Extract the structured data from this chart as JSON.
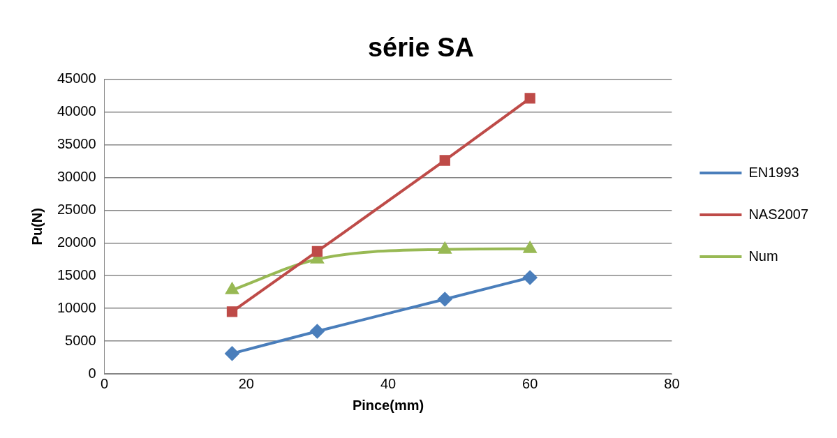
{
  "chart_data": {
    "type": "line",
    "title": "série SA",
    "xlabel": "Pince(mm)",
    "ylabel": "Pu(N)",
    "x": [
      18,
      30,
      48,
      60
    ],
    "series": [
      {
        "name": "EN1993",
        "color": "#4a7ebb",
        "values": [
          3100,
          6500,
          11400,
          14700
        ],
        "marker": "diamond"
      },
      {
        "name": "NAS2007",
        "color": "#be4b48",
        "values": [
          9500,
          18700,
          32600,
          42100
        ],
        "marker": "square"
      },
      {
        "name": "Num",
        "color": "#98b954",
        "values": [
          12800,
          17500,
          19000,
          19100
        ],
        "marker": "triangle"
      }
    ],
    "xlim": [
      0,
      80
    ],
    "xticks": [
      0,
      20,
      40,
      60,
      80
    ],
    "ylim": [
      0,
      45000
    ],
    "yticks": [
      0,
      5000,
      10000,
      15000,
      20000,
      25000,
      30000,
      35000,
      40000,
      45000
    ],
    "grid": "y",
    "legend": "right"
  }
}
